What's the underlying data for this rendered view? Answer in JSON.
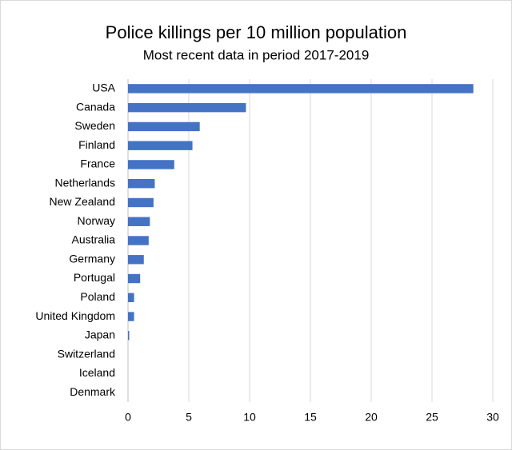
{
  "chart_data": {
    "type": "hbar",
    "title": "Police killings per 10 million population",
    "subtitle": "Most recent data in period 2017-2019",
    "categories": [
      "USA",
      "Canada",
      "Sweden",
      "Finland",
      "France",
      "Netherlands",
      "New Zealand",
      "Norway",
      "Australia",
      "Germany",
      "Portugal",
      "Poland",
      "United Kingdom",
      "Japan",
      "Switzerland",
      "Iceland",
      "Denmark"
    ],
    "values": [
      28.4,
      9.7,
      5.9,
      5.3,
      3.8,
      2.2,
      2.1,
      1.8,
      1.7,
      1.3,
      1.0,
      0.5,
      0.5,
      0.1,
      0,
      0,
      0
    ],
    "color": "#4472c4",
    "xlim": [
      0,
      30
    ],
    "xticks": [
      0,
      5,
      10,
      15,
      20,
      25,
      30
    ],
    "grid": true
  }
}
